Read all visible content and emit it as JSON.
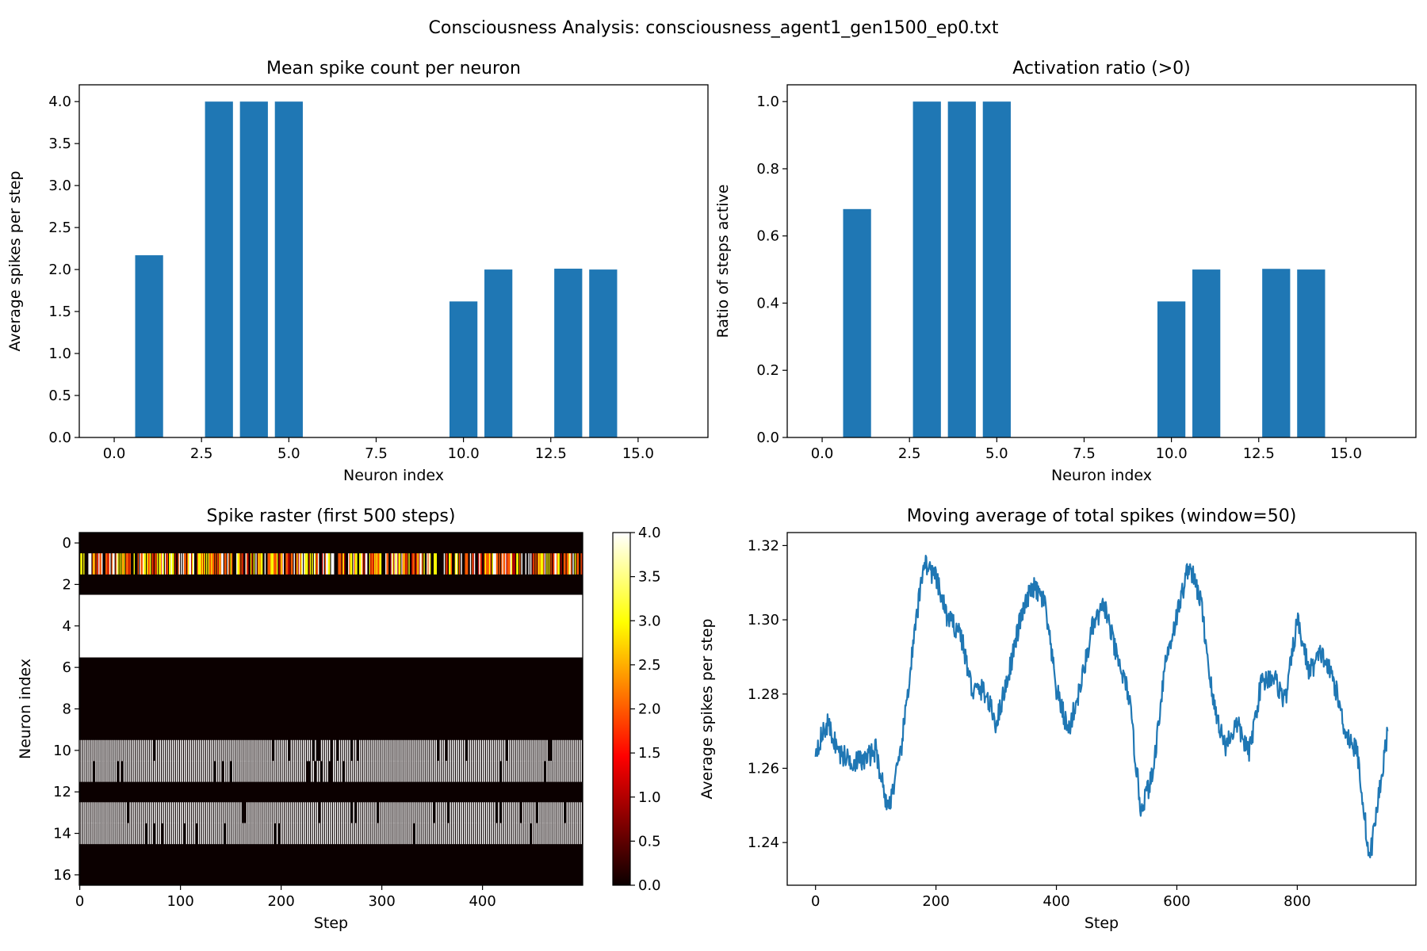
{
  "figure_title": "Consciousness Analysis: consciousness_agent1_gen1500_ep0.txt",
  "chart_data": [
    {
      "type": "bar",
      "title": "Mean spike count per neuron",
      "xlabel": "Neuron index",
      "ylabel": "Average spikes per step",
      "xlim": [
        -1.0,
        17.0
      ],
      "ylim": [
        0,
        4.2
      ],
      "xticks": [
        "0.0",
        "2.5",
        "5.0",
        "7.5",
        "10.0",
        "12.5",
        "15.0"
      ],
      "yticks": [
        "0.0",
        "0.5",
        "1.0",
        "1.5",
        "2.0",
        "2.5",
        "3.0",
        "3.5",
        "4.0"
      ],
      "categories": [
        0,
        1,
        2,
        3,
        4,
        5,
        6,
        7,
        8,
        9,
        10,
        11,
        12,
        13,
        14,
        15,
        16
      ],
      "values": [
        0,
        2.17,
        0,
        4.0,
        4.0,
        4.0,
        0,
        0,
        0,
        0,
        1.62,
        2.0,
        0,
        2.01,
        2.0,
        0,
        0
      ],
      "color": "#1f77b4"
    },
    {
      "type": "bar",
      "title": "Activation ratio (>0)",
      "xlabel": "Neuron index",
      "ylabel": "Ratio of steps active",
      "xlim": [
        -1.0,
        17.0
      ],
      "ylim": [
        0,
        1.05
      ],
      "xticks": [
        "0.0",
        "2.5",
        "5.0",
        "7.5",
        "10.0",
        "12.5",
        "15.0"
      ],
      "yticks": [
        "0.0",
        "0.2",
        "0.4",
        "0.6",
        "0.8",
        "1.0"
      ],
      "categories": [
        0,
        1,
        2,
        3,
        4,
        5,
        6,
        7,
        8,
        9,
        10,
        11,
        12,
        13,
        14,
        15,
        16
      ],
      "values": [
        0,
        0.68,
        0,
        1.0,
        1.0,
        1.0,
        0,
        0,
        0,
        0,
        0.405,
        0.5,
        0,
        0.502,
        0.5,
        0,
        0
      ],
      "color": "#1f77b4"
    },
    {
      "type": "heatmap",
      "title": "Spike raster (first 500 steps)",
      "xlabel": "Step",
      "ylabel": "Neuron index",
      "colormap": "hot",
      "steps": 500,
      "neurons": 17,
      "xticks": [
        "0",
        "100",
        "200",
        "300",
        "400"
      ],
      "yticks": [
        "0",
        "2",
        "4",
        "6",
        "8",
        "10",
        "12",
        "14",
        "16"
      ],
      "colorbar_ticks": [
        "0.0",
        "0.5",
        "1.0",
        "1.5",
        "2.0",
        "2.5",
        "3.0",
        "3.5",
        "4.0"
      ],
      "colorbar_range": [
        0,
        4
      ],
      "row_values": [
        0,
        2.17,
        0,
        4.0,
        4.0,
        4.0,
        0,
        0,
        0,
        0,
        1.62,
        2.0,
        0,
        2.01,
        2.0,
        0,
        0
      ]
    },
    {
      "type": "line",
      "title": "Moving average of total spikes (window=50)",
      "xlabel": "Step",
      "ylabel": "Average spikes per step",
      "xlim": [
        -47,
        997
      ],
      "ylim": [
        1.2285,
        1.3235
      ],
      "xticks": [
        "0",
        "200",
        "400",
        "600",
        "800"
      ],
      "yticks": [
        "1.24",
        "1.26",
        "1.28",
        "1.30",
        "1.32"
      ],
      "x": [
        0,
        20,
        40,
        60,
        80,
        100,
        120,
        140,
        160,
        180,
        200,
        220,
        240,
        260,
        280,
        300,
        320,
        340,
        360,
        380,
        400,
        420,
        440,
        460,
        480,
        500,
        520,
        540,
        560,
        580,
        600,
        620,
        640,
        660,
        680,
        700,
        720,
        740,
        760,
        780,
        800,
        820,
        840,
        860,
        880,
        900,
        920,
        940,
        950
      ],
      "y": [
        1.265,
        1.272,
        1.264,
        1.262,
        1.262,
        1.265,
        1.249,
        1.262,
        1.29,
        1.316,
        1.311,
        1.3,
        1.297,
        1.281,
        1.281,
        1.272,
        1.285,
        1.3,
        1.309,
        1.305,
        1.281,
        1.27,
        1.282,
        1.298,
        1.304,
        1.29,
        1.28,
        1.249,
        1.258,
        1.288,
        1.301,
        1.315,
        1.305,
        1.278,
        1.266,
        1.272,
        1.264,
        1.283,
        1.285,
        1.278,
        1.3,
        1.286,
        1.291,
        1.284,
        1.27,
        1.264,
        1.235,
        1.258,
        1.27
      ],
      "color": "#1f77b4"
    }
  ]
}
